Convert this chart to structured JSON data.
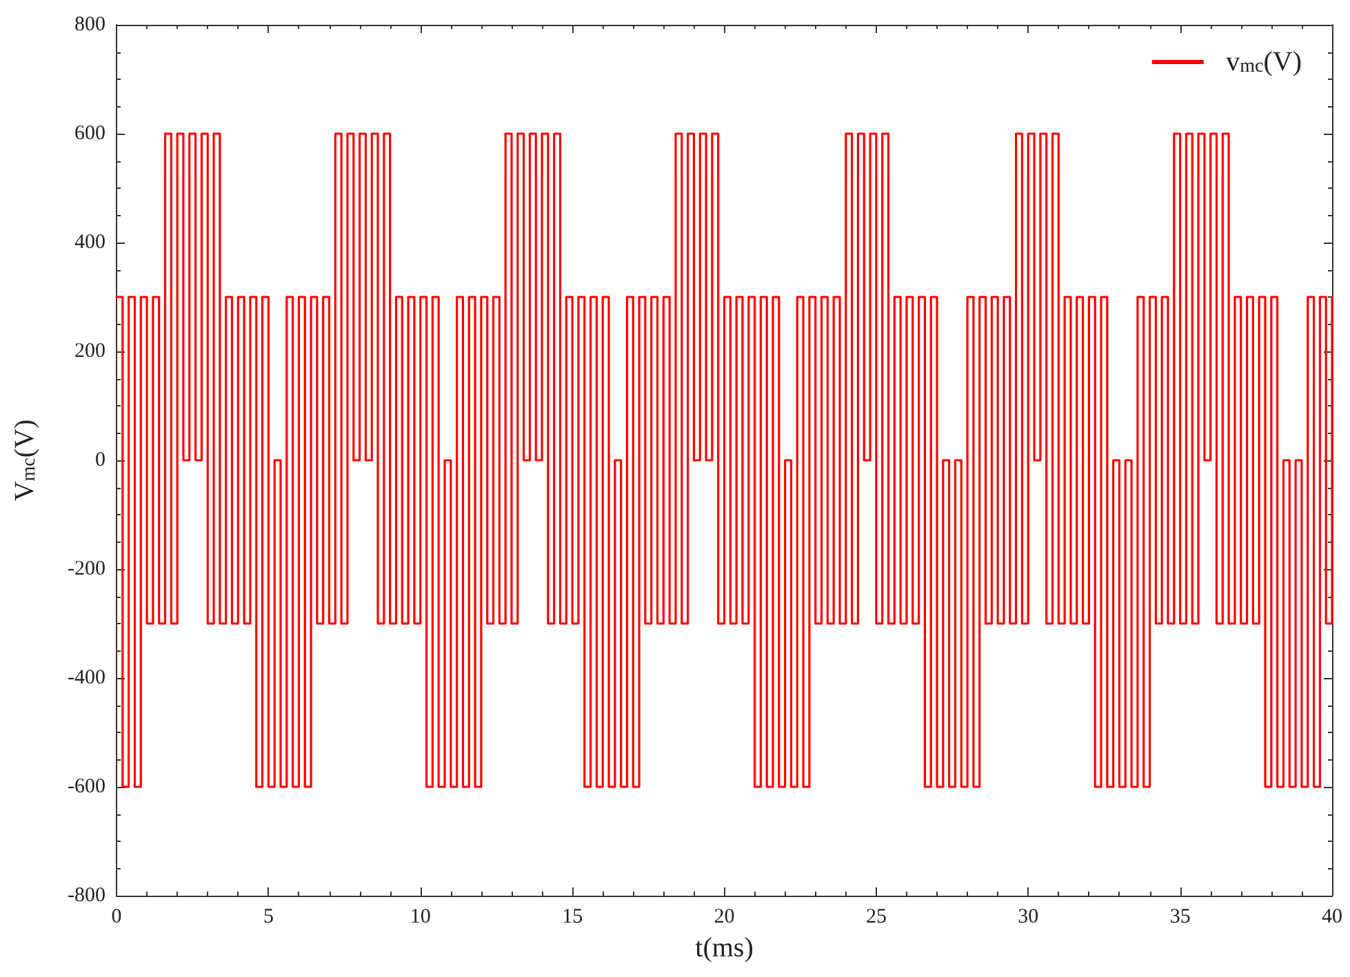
{
  "chart_data": {
    "type": "step",
    "xlabel": "t(ms)",
    "ylabel": "V$_{mc}$(V)",
    "xlim": [
      0,
      40
    ],
    "xticks": [
      0,
      5,
      10,
      15,
      20,
      25,
      30,
      35,
      40
    ],
    "ylim": [
      -800,
      800
    ],
    "yticks": [
      -800,
      -600,
      -400,
      -200,
      0,
      200,
      400,
      600,
      800
    ],
    "grid": false,
    "legend": "top right",
    "line_style": "solid",
    "marker": "none",
    "x": [
      0,
      0.2,
      0.4,
      0.6,
      0.8,
      1.0,
      1.2,
      1.4,
      1.6,
      1.8,
      2.0,
      2.2,
      2.4,
      2.6,
      2.8,
      3.0,
      3.2,
      3.4,
      3.6,
      3.8,
      4.0,
      4.2,
      4.4,
      4.6,
      4.8,
      5.0,
      5.2,
      5.4,
      5.6,
      5.8,
      6.0,
      6.2,
      6.4,
      6.6,
      6.8,
      7.0,
      7.2,
      7.4,
      7.6,
      7.8,
      8.0,
      8.2,
      8.4,
      8.6,
      8.8,
      9.0,
      9.2,
      9.4,
      9.6,
      9.8,
      10.0,
      10.2,
      10.4,
      10.6,
      10.8,
      11.0,
      11.2,
      11.4,
      11.6,
      11.8,
      12.0,
      12.2,
      12.4,
      12.6,
      12.8,
      13.0,
      13.2,
      13.4,
      13.6,
      13.8,
      14.0,
      14.2,
      14.4,
      14.6,
      14.8,
      15.0,
      15.2,
      15.4,
      15.6,
      15.8,
      16.0,
      16.2,
      16.4,
      16.6,
      16.8,
      17.0,
      17.2,
      17.4,
      17.6,
      17.8,
      18.0,
      18.2,
      18.4,
      18.6,
      18.8,
      19.0,
      19.2,
      19.4,
      19.6,
      19.8,
      20.0,
      20.2,
      20.4,
      20.6,
      20.8,
      21.0,
      21.2,
      21.4,
      21.6,
      21.8,
      22.0,
      22.2,
      22.4,
      22.6,
      22.8,
      23.0,
      23.2,
      23.4,
      23.6,
      23.8,
      24.0,
      24.2,
      24.4,
      24.6,
      24.8,
      25.0,
      25.2,
      25.4,
      25.6,
      25.8,
      26.0,
      26.2,
      26.4,
      26.6,
      26.8,
      27.0,
      27.2,
      27.4,
      27.6,
      27.8,
      28.0,
      28.2,
      28.4,
      28.6,
      28.8,
      29.0,
      29.2,
      29.4,
      29.6,
      29.8,
      30.0,
      30.2,
      30.4,
      30.6,
      30.8,
      31.0,
      31.2,
      31.4,
      31.6,
      31.8,
      32.0,
      32.2,
      32.4,
      32.6,
      32.8,
      33.0,
      33.2,
      33.4,
      33.6,
      33.8,
      34.0,
      34.2,
      34.4,
      34.6,
      34.8,
      35.0,
      35.2,
      35.4,
      35.6,
      35.8,
      36.0,
      36.2,
      36.4,
      36.6,
      36.8,
      37.0,
      37.2,
      37.4,
      37.6,
      37.8,
      38.0,
      38.2,
      38.4,
      38.6,
      38.8,
      39.0,
      39.2,
      39.4,
      39.6,
      39.8,
      40.0
    ],
    "series": [
      {
        "name": "v$_{mc}$(V)",
        "color": "#ff0000",
        "values": [
          300,
          -600,
          300,
          -600,
          300,
          -300,
          300,
          -300,
          600,
          -300,
          600,
          0,
          600,
          0,
          600,
          -300,
          600,
          -300,
          300,
          -300,
          300,
          -300,
          300,
          -600,
          300,
          -600,
          0,
          -600,
          300,
          -600,
          300,
          -600,
          300,
          -300,
          300,
          -300,
          600,
          -300,
          600,
          0,
          600,
          0,
          600,
          -300,
          600,
          -300,
          300,
          -300,
          300,
          -300,
          300,
          -600,
          300,
          -600,
          0,
          -600,
          300,
          -600,
          300,
          -600,
          300,
          -300,
          300,
          -300,
          600,
          -300,
          600,
          0,
          600,
          0,
          600,
          -300,
          600,
          -300,
          300,
          -300,
          300,
          -600,
          300,
          -600,
          300,
          -600,
          0,
          -600,
          300,
          -600,
          300,
          -300,
          300,
          -300,
          300,
          -300,
          600,
          -300,
          600,
          0,
          600,
          0,
          600,
          -300,
          300,
          -300,
          300,
          -300,
          300,
          -600,
          300,
          -600,
          300,
          -600,
          0,
          -600,
          300,
          -600,
          300,
          -300,
          300,
          -300,
          300,
          -300,
          600,
          -300,
          600,
          0,
          600,
          -300,
          600,
          -300,
          300,
          -300,
          300,
          -300,
          300,
          -600,
          300,
          -600,
          0,
          -600,
          0,
          -600,
          300,
          -600,
          300,
          -300,
          300,
          -300,
          300,
          -300,
          600,
          -300,
          600,
          0,
          600,
          -300,
          600,
          -300,
          300,
          -300,
          300,
          -300,
          300,
          -600,
          300,
          -600,
          0,
          -600,
          0,
          -600,
          300,
          -600,
          300,
          -300,
          300,
          -300,
          600,
          -300,
          600,
          -300,
          600,
          0,
          600,
          -300,
          600,
          -300,
          300,
          -300,
          300,
          -300,
          300,
          -600,
          300,
          -600,
          0,
          -600,
          0,
          -600,
          300,
          -600,
          300,
          -300,
          300
        ]
      }
    ]
  }
}
